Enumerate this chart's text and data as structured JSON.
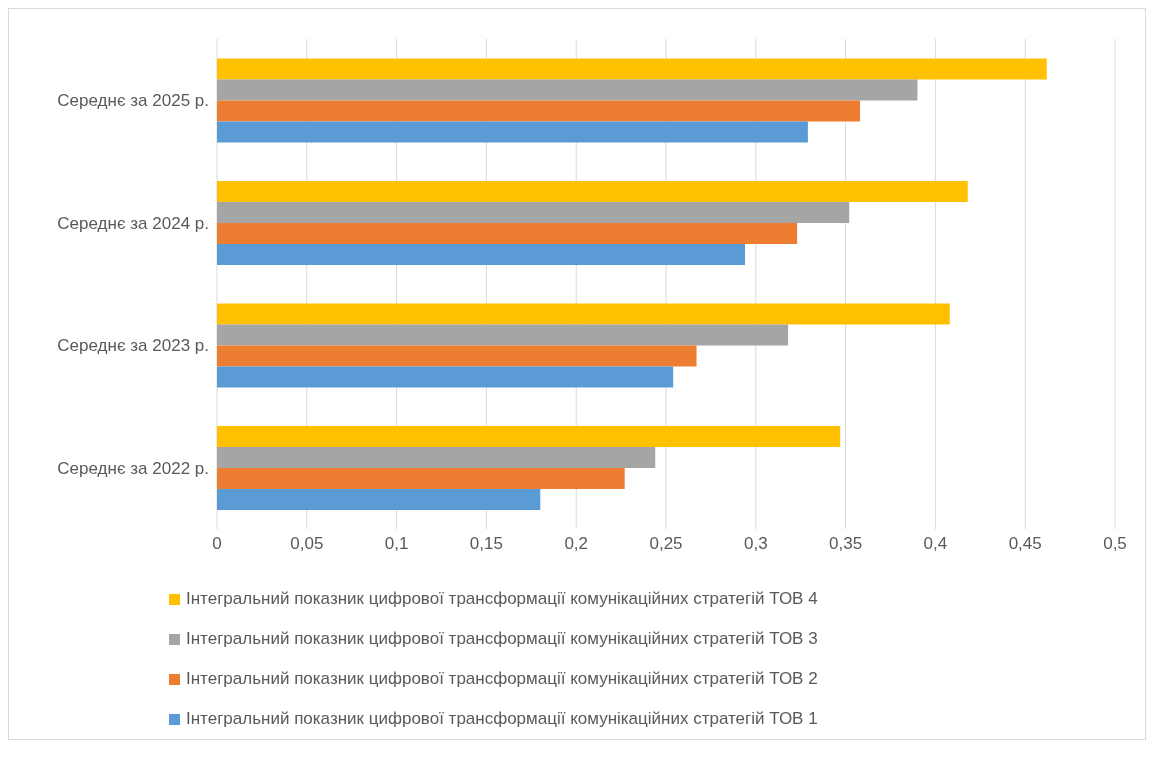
{
  "chart_data": {
    "type": "bar",
    "orientation": "horizontal",
    "categories": [
      "Середнє за 2025 р.",
      "Середнє за 2024 р.",
      "Середнє за 2023 р.",
      "Середнє за 2022 р."
    ],
    "series": [
      {
        "name": "Інтегральний показник цифрової трансформації комунікаційних стратегій ТОВ 4",
        "color": "#ffc000",
        "values": [
          0.462,
          0.418,
          0.408,
          0.347
        ]
      },
      {
        "name": "Інтегральний показник цифрової трансформації комунікаційних стратегій ТОВ 3",
        "color": "#a5a5a5",
        "values": [
          0.39,
          0.352,
          0.318,
          0.244
        ]
      },
      {
        "name": "Інтегральний показник цифрової трансформації комунікаційних стратегій ТОВ 2",
        "color": "#ed7d31",
        "values": [
          0.358,
          0.323,
          0.267,
          0.227
        ]
      },
      {
        "name": "Інтегральний показник цифрової трансформації комунікаційних стратегій ТОВ 1",
        "color": "#5b9bd5",
        "values": [
          0.329,
          0.294,
          0.254,
          0.18
        ]
      }
    ],
    "xlim": [
      0,
      0.5
    ],
    "xticks": [
      0,
      {
        "value": 0.05,
        "label": "0,05"
      },
      {
        "value": 0.1,
        "label": "0,1"
      },
      {
        "value": 0.15,
        "label": "0,15"
      },
      {
        "value": 0.2,
        "label": "0,2"
      },
      {
        "value": 0.25,
        "label": "0,25"
      },
      {
        "value": 0.3,
        "label": "0,3"
      },
      {
        "value": 0.35,
        "label": "0,35"
      },
      {
        "value": 0.4,
        "label": "0,4"
      },
      {
        "value": 0.45,
        "label": "0,45"
      },
      {
        "value": 0.5,
        "label": "0,5"
      }
    ],
    "grid": "x",
    "legend": "bottom"
  }
}
